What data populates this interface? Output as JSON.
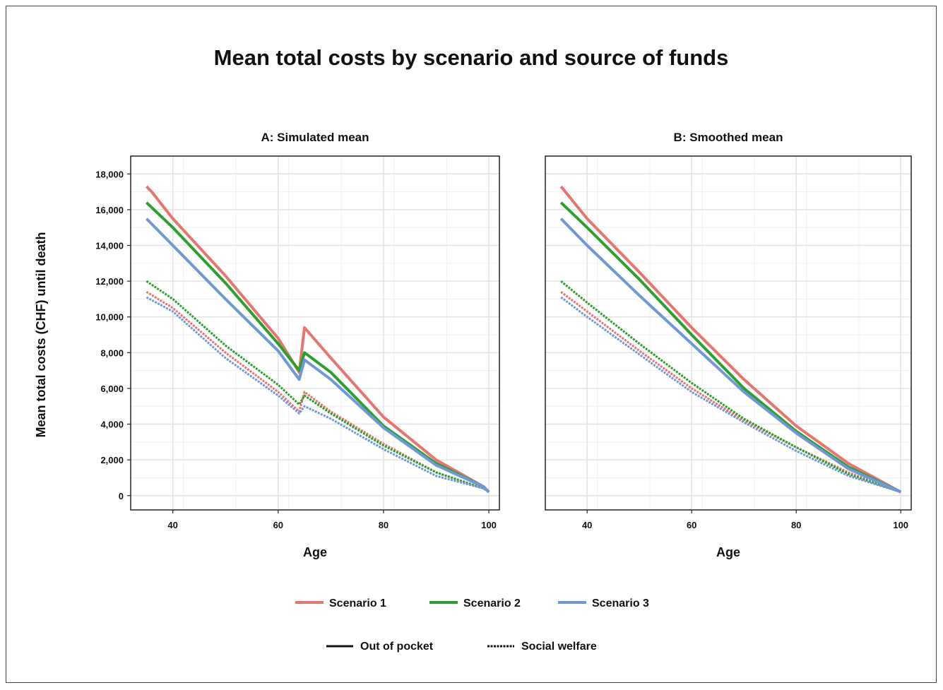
{
  "chart_data": {
    "title": "Mean total costs by scenario and source of funds",
    "ylabel": "Mean total costs (CHF) until death",
    "type": "line",
    "ylim": [
      -800,
      19000
    ],
    "xlim": [
      32,
      102
    ],
    "xticks": [
      40,
      60,
      80,
      100
    ],
    "yticks": [
      0,
      2000,
      4000,
      6000,
      8000,
      10000,
      12000,
      14000,
      16000,
      18000
    ],
    "ytick_labels": [
      "0",
      "2,000",
      "4,000",
      "6,000",
      "8,000",
      "10,000",
      "12,000",
      "14,000",
      "16,000",
      "18,000"
    ],
    "grid": true,
    "colors": {
      "Scenario 1": "#e8736f",
      "Scenario 2": "#2ca02c",
      "Scenario 3": "#6f98d8"
    },
    "legend": {
      "placement": "bottom",
      "colors": [
        {
          "label": "Scenario 1",
          "color": "#e8736f"
        },
        {
          "label": "Scenario 2",
          "color": "#2ca02c"
        },
        {
          "label": "Scenario 3",
          "color": "#6f98d8"
        }
      ],
      "linetypes": [
        {
          "label": "Out of pocket",
          "style": "solid"
        },
        {
          "label": "Social welfare",
          "style": "dashed"
        }
      ]
    },
    "panels": [
      {
        "title": "A: Simulated mean",
        "xlabel": "Age",
        "series": [
          {
            "scenario": "Scenario 1",
            "source": "Out of pocket",
            "x": [
              35,
              36,
              40,
              50,
              60,
              64,
              65,
              70,
              80,
              90,
              99,
              100
            ],
            "y": [
              17300,
              17000,
              15500,
              12300,
              8800,
              6900,
              9400,
              7700,
              4400,
              2000,
              500,
              200
            ]
          },
          {
            "scenario": "Scenario 1",
            "source": "Social welfare",
            "x": [
              35,
              40,
              50,
              60,
              64,
              65,
              70,
              80,
              90,
              99,
              100
            ],
            "y": [
              11400,
              10500,
              8000,
              5800,
              4700,
              5800,
              4700,
              2900,
              1300,
              400,
              200
            ]
          },
          {
            "scenario": "Scenario 2",
            "source": "Out of pocket",
            "x": [
              35,
              40,
              50,
              60,
              64,
              65,
              70,
              80,
              90,
              99,
              100
            ],
            "y": [
              16400,
              15000,
              11900,
              8500,
              7000,
              8000,
              6900,
              3900,
              1800,
              500,
              200
            ]
          },
          {
            "scenario": "Scenario 2",
            "source": "Social welfare",
            "x": [
              35,
              40,
              50,
              60,
              64,
              65,
              70,
              80,
              90,
              99,
              100
            ],
            "y": [
              12000,
              11000,
              8400,
              6200,
              5100,
              5600,
              4600,
              2800,
              1300,
              400,
              200
            ]
          },
          {
            "scenario": "Scenario 3",
            "source": "Out of pocket",
            "x": [
              35,
              40,
              50,
              60,
              64,
              65,
              70,
              80,
              90,
              99,
              100
            ],
            "y": [
              15500,
              14000,
              11000,
              8100,
              6500,
              7600,
              6500,
              3800,
              1700,
              500,
              200
            ]
          },
          {
            "scenario": "Scenario 3",
            "source": "Social welfare",
            "x": [
              35,
              40,
              50,
              60,
              64,
              65,
              70,
              80,
              90,
              99,
              100
            ],
            "y": [
              11100,
              10300,
              7700,
              5600,
              4600,
              5000,
              4300,
              2600,
              1100,
              400,
              200
            ]
          }
        ]
      },
      {
        "title": "B: Smoothed mean",
        "xlabel": "Age",
        "series": [
          {
            "scenario": "Scenario 1",
            "source": "Out of pocket",
            "x": [
              35,
              40,
              50,
              60,
              70,
              80,
              90,
              100
            ],
            "y": [
              17300,
              15500,
              12500,
              9400,
              6500,
              3900,
              1800,
              200
            ]
          },
          {
            "scenario": "Scenario 1",
            "source": "Social welfare",
            "x": [
              35,
              40,
              50,
              60,
              70,
              80,
              90,
              100
            ],
            "y": [
              11400,
              10300,
              8100,
              6000,
              4200,
              2700,
              1300,
              200
            ]
          },
          {
            "scenario": "Scenario 2",
            "source": "Out of pocket",
            "x": [
              35,
              40,
              50,
              60,
              70,
              80,
              90,
              100
            ],
            "y": [
              16400,
              15000,
              12100,
              9000,
              6000,
              3600,
              1600,
              200
            ]
          },
          {
            "scenario": "Scenario 2",
            "source": "Social welfare",
            "x": [
              35,
              40,
              50,
              60,
              70,
              80,
              90,
              100
            ],
            "y": [
              12000,
              10800,
              8500,
              6300,
              4300,
              2700,
              1200,
              200
            ]
          },
          {
            "scenario": "Scenario 3",
            "source": "Out of pocket",
            "x": [
              35,
              40,
              50,
              60,
              70,
              80,
              90,
              100
            ],
            "y": [
              15500,
              14000,
              11200,
              8500,
              5800,
              3500,
              1500,
              200
            ]
          },
          {
            "scenario": "Scenario 3",
            "source": "Social welfare",
            "x": [
              35,
              40,
              50,
              60,
              70,
              80,
              90,
              100
            ],
            "y": [
              11100,
              10000,
              7900,
              5800,
              4100,
              2500,
              1100,
              200
            ]
          }
        ]
      }
    ]
  }
}
